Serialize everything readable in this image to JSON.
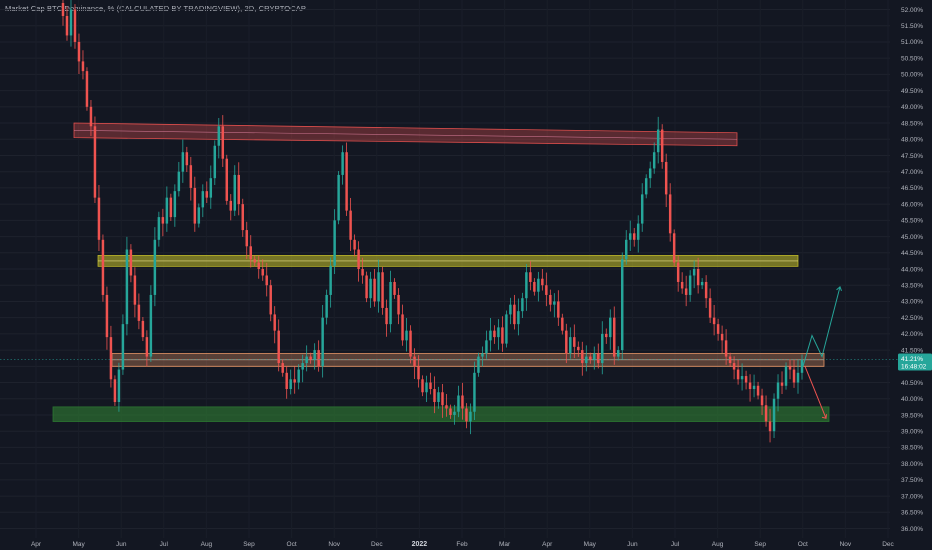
{
  "header": {
    "title": "Market Cap BTC Dominance, % (CALCULATED BY TRADINGVIEW), 2D, CRYPTOCAP"
  },
  "price_badge": {
    "value": "41.21%",
    "countdown": "16:48:02",
    "color": "#26a69a"
  },
  "colors": {
    "up": "#26a69a",
    "down": "#ef5350",
    "background": "#131722",
    "resistance_zone": "#ef5350",
    "middle_zone": "#c9c32a",
    "support_zone": "#2e7d32",
    "pivot_zone": "#f7a06b"
  },
  "chart_data": {
    "type": "candlestick",
    "title": "Market Cap BTC Dominance, % (CALCULATED BY TRADINGVIEW), 2D, CRYPTOCAP",
    "xlabel": "",
    "ylabel": "",
    "ylim": [
      36.0,
      52.2
    ],
    "y_ticks": [
      "52.00%",
      "51.50%",
      "51.00%",
      "50.50%",
      "50.00%",
      "49.50%",
      "49.00%",
      "48.50%",
      "48.00%",
      "47.50%",
      "47.00%",
      "46.50%",
      "46.00%",
      "45.50%",
      "45.00%",
      "44.50%",
      "44.00%",
      "43.50%",
      "43.00%",
      "42.50%",
      "42.00%",
      "41.50%",
      "41.00%",
      "40.50%",
      "40.00%",
      "39.50%",
      "39.00%",
      "38.50%",
      "38.00%",
      "37.50%",
      "37.00%",
      "36.50%",
      "36.00%"
    ],
    "x_ticks": [
      "Apr",
      "May",
      "Jun",
      "Jul",
      "Aug",
      "Sep",
      "Oct",
      "Nov",
      "Dec",
      "2022",
      "Feb",
      "Mar",
      "Apr",
      "May",
      "Jun",
      "Jul",
      "Aug",
      "Sep",
      "Oct",
      "Nov",
      "Dec"
    ],
    "year_tick": "2022",
    "series": [
      {
        "values": [
          52.2,
          51.8,
          51.2,
          52.0,
          51.0,
          50.4,
          50.1,
          49.0,
          48.4,
          46.2,
          44.9,
          43.2,
          41.9,
          40.6,
          39.9,
          40.9,
          42.3,
          44.6,
          43.8,
          42.9,
          42.4,
          41.9,
          41.3,
          43.2,
          44.9,
          45.6,
          45.4,
          46.2,
          45.6,
          46.4,
          47.0,
          47.6,
          47.2,
          46.5,
          45.4,
          45.9,
          46.4,
          46.2,
          46.8,
          47.8,
          48.4,
          47.4,
          46.1,
          45.8,
          46.9,
          46.0,
          45.2,
          44.7,
          44.3,
          44.2,
          44.0,
          43.8,
          43.5,
          42.6,
          42.1,
          41.1,
          40.8,
          40.3,
          40.6,
          40.5,
          40.9,
          41.1,
          41.3,
          41.2,
          41.5,
          41.0,
          42.5,
          43.2,
          44.1,
          45.5,
          46.9,
          47.6,
          45.8,
          44.9,
          44.6,
          44.0,
          43.8,
          43.1,
          43.7,
          43.0,
          43.9,
          42.8,
          42.3,
          43.6,
          43.2,
          42.6,
          41.8,
          42.1,
          41.3,
          41.0,
          40.6,
          40.2,
          40.5,
          40.3,
          39.9,
          40.2,
          39.8,
          39.7,
          39.5,
          39.6,
          40.1,
          39.7,
          39.3,
          39.6,
          40.8,
          41.3,
          41.4,
          41.8,
          42.1,
          41.9,
          42.2,
          41.7,
          42.6,
          42.9,
          42.3,
          42.7,
          43.1,
          43.9,
          43.6,
          43.3,
          43.7,
          43.5,
          43.2,
          42.9,
          43.0,
          42.5,
          42.1,
          41.4,
          41.9,
          41.6,
          41.5,
          41.1,
          41.3,
          41.2,
          41.4,
          41.1,
          42.0,
          41.9,
          42.5,
          41.3,
          41.5,
          44.3,
          44.9,
          45.1,
          44.9,
          45.4,
          46.3,
          46.8,
          47.1,
          47.6,
          48.3,
          47.3,
          46.3,
          45.1,
          44.2,
          43.6,
          43.4,
          43.2,
          43.8,
          44.0,
          43.5,
          43.6,
          43.1,
          42.5,
          42.3,
          42.0,
          41.8,
          41.3,
          41.1,
          40.9,
          40.6,
          40.7,
          40.5,
          40.3,
          40.4,
          40.1,
          39.8,
          39.3,
          39.0,
          40.0,
          40.5,
          40.4,
          41.0,
          40.9,
          40.5,
          40.8,
          41.2
        ]
      }
    ],
    "zones": [
      {
        "kind": "resistance",
        "y_left": [
          48.05,
          48.5
        ],
        "y_right": [
          47.8,
          48.2
        ]
      },
      {
        "kind": "range-high",
        "y": [
          44.08,
          44.42
        ]
      },
      {
        "kind": "pivot",
        "y": [
          41.0,
          41.4
        ]
      },
      {
        "kind": "support",
        "y": [
          39.3,
          39.75
        ]
      }
    ],
    "projections": [
      {
        "direction": "up",
        "points": [
          41.0,
          41.95,
          41.3,
          43.45
        ]
      },
      {
        "direction": "down",
        "points": [
          41.0,
          39.4
        ]
      }
    ],
    "current_price_line": 41.21
  }
}
